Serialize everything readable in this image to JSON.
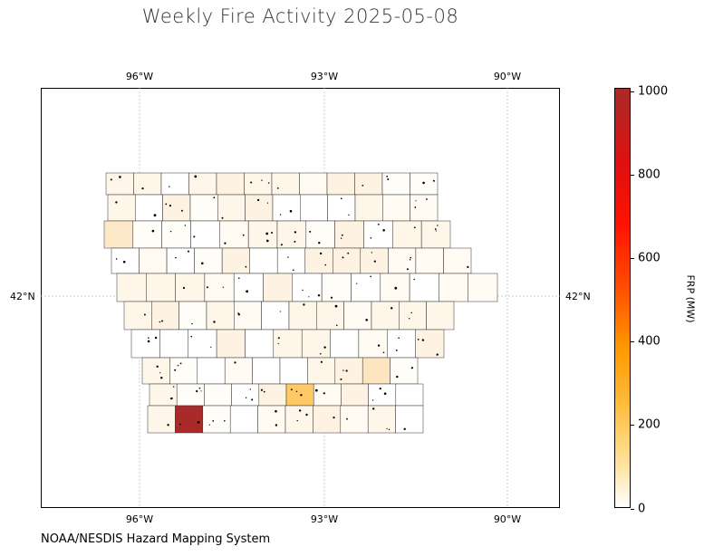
{
  "title": "Weekly Fire Activity 2025-05-08",
  "source": "NOAA/NESDIS Hazard Mapping System",
  "longitude_ticks": [
    "96°W",
    "93°W",
    "90°W"
  ],
  "latitude_ticks": [
    "42°N"
  ],
  "colorbar": {
    "label": "FRP (MW)",
    "ticks": [
      "0",
      "200",
      "400",
      "600",
      "800",
      "1000"
    ],
    "min": 0,
    "max": 1000,
    "colors": [
      "#ffffff",
      "#ffe3a0",
      "#ffbb3a",
      "#ff9900",
      "#ff5000",
      "#ff1100",
      "#aa2a2a"
    ]
  },
  "highlighted_counties": [
    {
      "col": 1,
      "row": 9,
      "frp": 1000,
      "color": "#aa2a2a"
    },
    {
      "col": 5,
      "row": 8,
      "frp": 230,
      "color": "#ffc966"
    },
    {
      "col": 0,
      "row": 2,
      "frp": 70,
      "color": "#fde9c8"
    },
    {
      "col": 8,
      "row": 7,
      "frp": 75,
      "color": "#fde5c0"
    },
    {
      "col": 12,
      "row": 0,
      "frp": 60,
      "color": "#fdecd4"
    }
  ]
}
